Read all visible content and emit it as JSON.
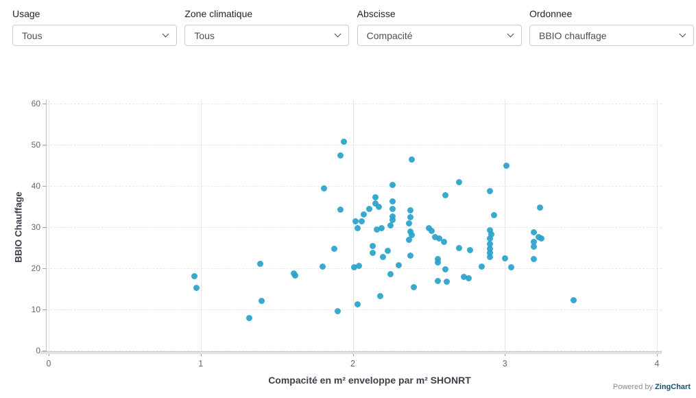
{
  "filters": [
    {
      "label": "Usage",
      "value": "Tous"
    },
    {
      "label": "Zone climatique",
      "value": "Tous"
    },
    {
      "label": "Abscisse",
      "value": "Compacité"
    },
    {
      "label": "Ordonnee",
      "value": "BBIO chauffage"
    }
  ],
  "chart_data": {
    "type": "scatter",
    "xlabel": "Compacité en m² enveloppe par m² SHONRT",
    "ylabel": "BBIO Chauffage",
    "xlim": [
      0,
      4
    ],
    "ylim": [
      0,
      60
    ],
    "x_ticks": [
      0,
      1,
      2,
      3,
      4
    ],
    "x_tick_labels": [
      "0",
      "1",
      "2",
      "3",
      "4"
    ],
    "y_ticks": [
      0,
      10,
      20,
      30,
      40,
      50,
      60
    ],
    "y_tick_labels": [
      "0",
      "10",
      "20",
      "30",
      "40",
      "50",
      "60"
    ],
    "grid": true,
    "legend": "none",
    "marker_color": "#29A2CC",
    "points": [
      [
        0.96,
        18.1
      ],
      [
        0.97,
        15.2
      ],
      [
        1.32,
        7.9
      ],
      [
        1.39,
        21.1
      ],
      [
        1.4,
        12.1
      ],
      [
        1.61,
        18.8
      ],
      [
        1.62,
        18.3
      ],
      [
        1.8,
        20.5
      ],
      [
        1.81,
        39.4
      ],
      [
        1.88,
        24.7
      ],
      [
        1.9,
        9.6
      ],
      [
        1.92,
        47.5
      ],
      [
        1.92,
        34.3
      ],
      [
        1.94,
        50.8
      ],
      [
        2.02,
        31.4
      ],
      [
        2.06,
        31.5
      ],
      [
        2.03,
        29.8
      ],
      [
        2.01,
        20.3
      ],
      [
        2.04,
        20.6
      ],
      [
        2.03,
        11.3
      ],
      [
        2.07,
        33.1
      ],
      [
        2.11,
        34.5
      ],
      [
        2.13,
        25.5
      ],
      [
        2.13,
        23.8
      ],
      [
        2.15,
        37.2
      ],
      [
        2.15,
        35.7
      ],
      [
        2.17,
        35.0
      ],
      [
        2.16,
        29.4
      ],
      [
        2.19,
        29.8
      ],
      [
        2.18,
        13.2
      ],
      [
        2.2,
        22.8
      ],
      [
        2.23,
        24.3
      ],
      [
        2.25,
        30.5
      ],
      [
        2.26,
        36.2
      ],
      [
        2.26,
        34.4
      ],
      [
        2.26,
        32.6
      ],
      [
        2.26,
        31.7
      ],
      [
        2.26,
        40.3
      ],
      [
        2.25,
        18.6
      ],
      [
        2.3,
        20.7
      ],
      [
        2.38,
        34.1
      ],
      [
        2.38,
        32.4
      ],
      [
        2.37,
        30.9
      ],
      [
        2.38,
        28.9
      ],
      [
        2.39,
        28.1
      ],
      [
        2.37,
        27.0
      ],
      [
        2.38,
        23.1
      ],
      [
        2.39,
        46.5
      ],
      [
        2.4,
        15.4
      ],
      [
        2.5,
        29.8
      ],
      [
        2.52,
        29.1
      ],
      [
        2.54,
        27.6
      ],
      [
        2.57,
        27.3
      ],
      [
        2.56,
        22.2
      ],
      [
        2.56,
        21.5
      ],
      [
        2.56,
        17.0
      ],
      [
        2.6,
        26.4
      ],
      [
        2.61,
        37.7
      ],
      [
        2.61,
        19.7
      ],
      [
        2.62,
        16.8
      ],
      [
        2.7,
        41.0
      ],
      [
        2.7,
        24.9
      ],
      [
        2.73,
        17.9
      ],
      [
        2.76,
        17.6
      ],
      [
        2.77,
        24.4
      ],
      [
        2.9,
        38.8
      ],
      [
        2.93,
        33.0
      ],
      [
        2.9,
        29.2
      ],
      [
        2.91,
        28.2
      ],
      [
        2.9,
        27.2
      ],
      [
        2.9,
        25.9
      ],
      [
        2.9,
        24.7
      ],
      [
        2.9,
        23.8
      ],
      [
        2.9,
        22.8
      ],
      [
        2.85,
        20.4
      ],
      [
        3.01,
        45.0
      ],
      [
        3.0,
        22.4
      ],
      [
        3.04,
        20.3
      ],
      [
        3.19,
        28.8
      ],
      [
        3.22,
        27.6
      ],
      [
        3.24,
        27.3
      ],
      [
        3.19,
        26.4
      ],
      [
        3.19,
        25.3
      ],
      [
        3.19,
        22.2
      ],
      [
        3.23,
        34.8
      ],
      [
        3.45,
        12.2
      ]
    ]
  },
  "footer": {
    "powered_by": "Powered by",
    "brand": "ZingChart"
  }
}
